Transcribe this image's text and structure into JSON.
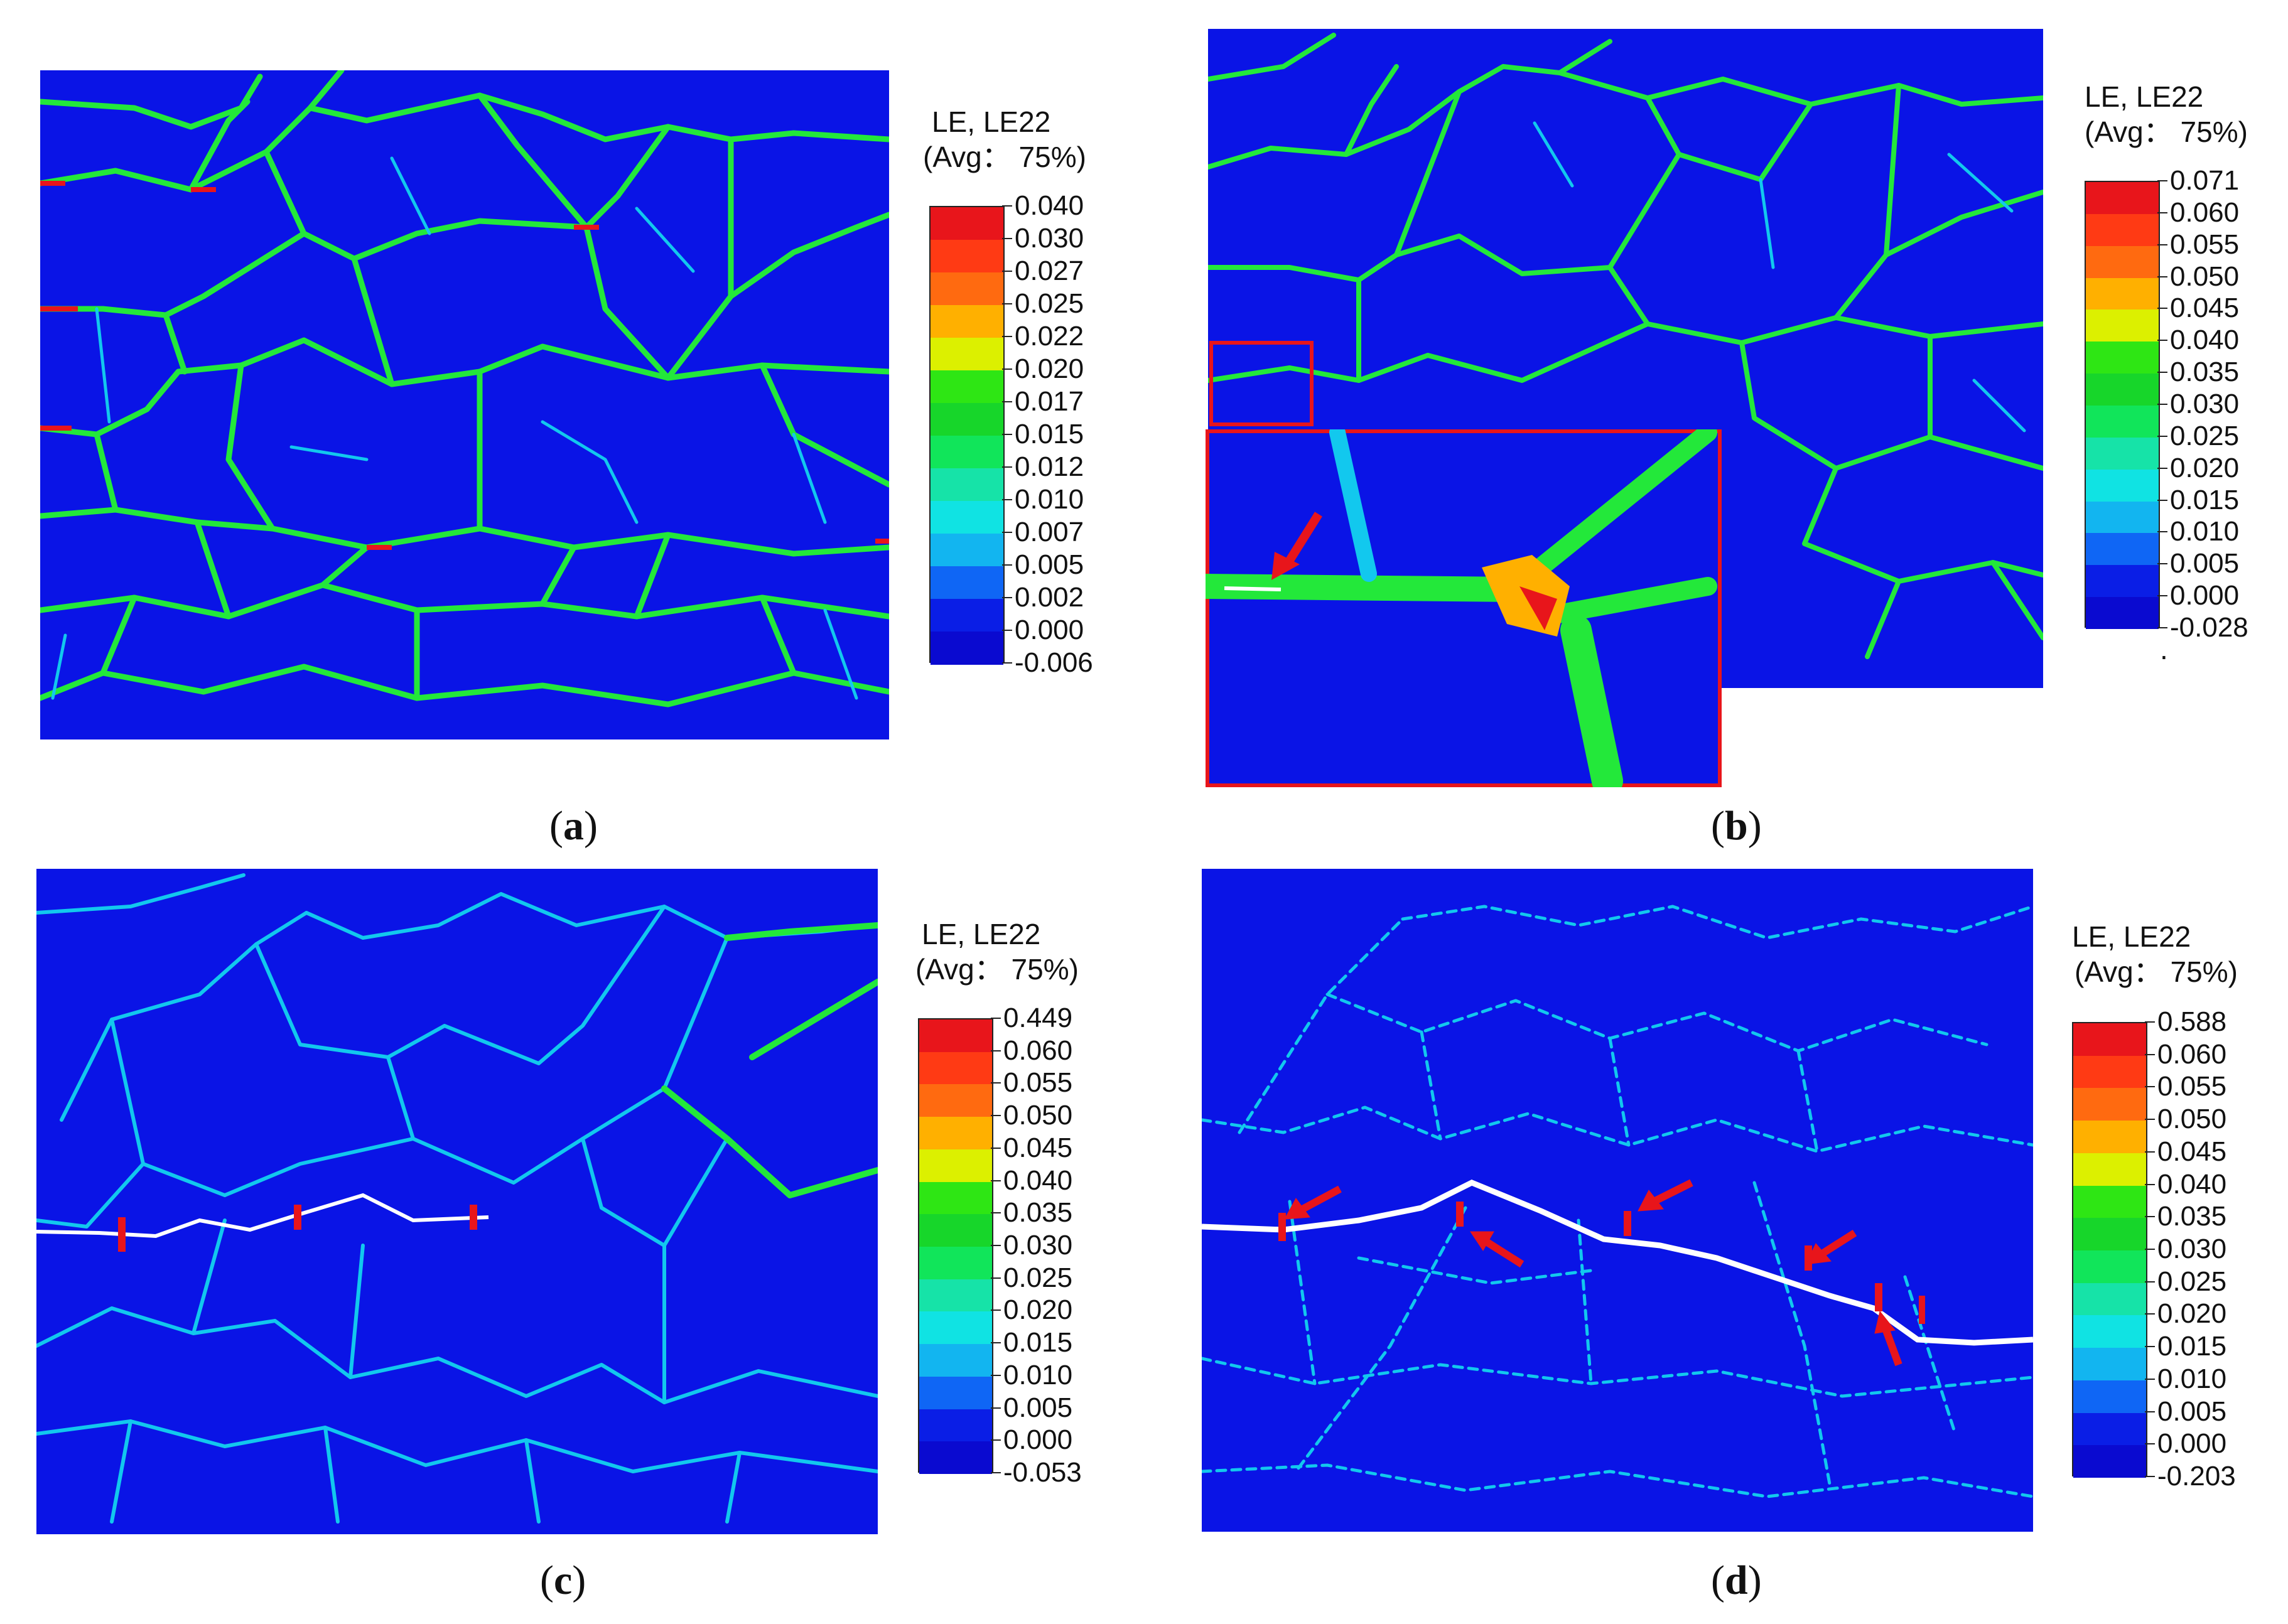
{
  "figure": {
    "colors": {
      "background": "#0a14e6",
      "crack": "#ffffff",
      "arrow": "#e8151b",
      "inset_border": "#e8151b",
      "scale": [
        "#e8151b",
        "#ff3a14",
        "#ff6a10",
        "#ffb000",
        "#dcf000",
        "#2ee614",
        "#17d62a",
        "#11e55a",
        "#16e3a8",
        "#10e3e3",
        "#12b5f0",
        "#0f66f5",
        "#0a1ee6",
        "#0a0ad0"
      ]
    },
    "panels": [
      {
        "id": "a",
        "caption_open": "(",
        "caption_letter": "a",
        "caption_close": ")",
        "legend": {
          "variable": "LE, LE22",
          "averaging": "(Avg： 75%)",
          "ticks": [
            "0.040",
            "0.030",
            "0.027",
            "0.025",
            "0.022",
            "0.020",
            "0.017",
            "0.015",
            "0.012",
            "0.010",
            "0.007",
            "0.005",
            "0.002",
            "0.000",
            "-0.006"
          ]
        },
        "crack": false
      },
      {
        "id": "b",
        "caption_open": "(",
        "caption_letter": "b",
        "caption_close": ")",
        "legend": {
          "variable": "LE, LE22",
          "averaging": "(Avg： 75%)",
          "ticks": [
            "0.071",
            "0.060",
            "0.055",
            "0.050",
            "0.045",
            "0.040",
            "0.035",
            "0.030",
            "0.025",
            "0.020",
            "0.015",
            "0.010",
            "0.005",
            "0.000",
            "-0.028"
          ],
          "trailing_mark": "."
        },
        "crack": false,
        "inset": true
      },
      {
        "id": "c",
        "caption_open": "(",
        "caption_letter": "c",
        "caption_close": ")",
        "legend": {
          "variable": "LE, LE22",
          "averaging": "(Avg： 75%)",
          "ticks": [
            "0.449",
            "0.060",
            "0.055",
            "0.050",
            "0.045",
            "0.040",
            "0.035",
            "0.030",
            "0.025",
            "0.020",
            "0.015",
            "0.010",
            "0.005",
            "0.000",
            "-0.053"
          ]
        },
        "crack": true
      },
      {
        "id": "d",
        "caption_open": "(",
        "caption_letter": "d",
        "caption_close": ")",
        "legend": {
          "variable": "LE, LE22",
          "averaging": "(Avg： 75%)",
          "ticks": [
            "0.588",
            "0.060",
            "0.055",
            "0.050",
            "0.045",
            "0.040",
            "0.035",
            "0.030",
            "0.025",
            "0.020",
            "0.015",
            "0.010",
            "0.005",
            "0.000",
            "-0.203"
          ]
        },
        "crack": true
      }
    ]
  }
}
